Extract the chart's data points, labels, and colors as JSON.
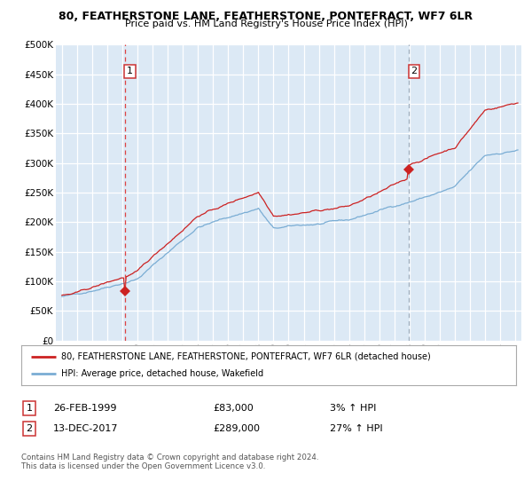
{
  "title": "80, FEATHERSTONE LANE, FEATHERSTONE, PONTEFRACT, WF7 6LR",
  "subtitle": "Price paid vs. HM Land Registry's House Price Index (HPI)",
  "legend_line1": "80, FEATHERSTONE LANE, FEATHERSTONE, PONTEFRACT, WF7 6LR (detached house)",
  "legend_line2": "HPI: Average price, detached house, Wakefield",
  "annotation1_date": "26-FEB-1999",
  "annotation1_price": 83000,
  "annotation1_pct": "3% ↑ HPI",
  "annotation1_year": 1999.15,
  "annotation2_date": "13-DEC-2017",
  "annotation2_price": 289000,
  "annotation2_pct": "27% ↑ HPI",
  "annotation2_year": 2017.95,
  "footer": "Contains HM Land Registry data © Crown copyright and database right 2024.\nThis data is licensed under the Open Government Licence v3.0.",
  "hpi_color": "#7aadd4",
  "price_color": "#cc2222",
  "bg_color": "#dce9f5",
  "grid_color": "#ffffff",
  "ylim": [
    0,
    500000
  ],
  "xlim_start": 1994.6,
  "xlim_end": 2025.4,
  "vline1_color": "#dd4444",
  "vline2_color": "#9aaabb"
}
